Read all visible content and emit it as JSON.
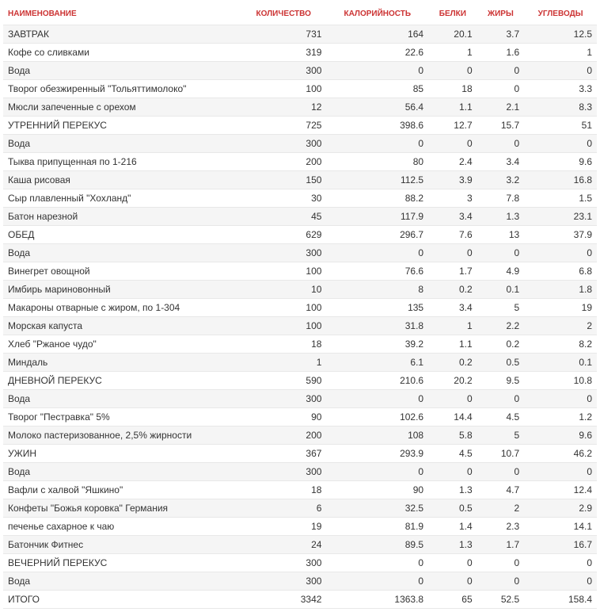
{
  "table": {
    "columns": [
      {
        "key": "name",
        "label": "НАИМЕНОВАНИЕ",
        "class": "name"
      },
      {
        "key": "qty",
        "label": "КОЛИЧЕСТВО",
        "class": "num"
      },
      {
        "key": "kcal",
        "label": "КАЛОРИЙНОСТЬ",
        "class": "num"
      },
      {
        "key": "prot",
        "label": "БЕЛКИ",
        "class": "num"
      },
      {
        "key": "fat",
        "label": "ЖИРЫ",
        "class": "num"
      },
      {
        "key": "carb",
        "label": "УГЛЕВОДЫ",
        "class": "num"
      }
    ],
    "rows": [
      {
        "name": "ЗАВТРАК",
        "qty": "731",
        "kcal": "164",
        "prot": "20.1",
        "fat": "3.7",
        "carb": "12.5"
      },
      {
        "name": "Кофе со сливками",
        "qty": "319",
        "kcal": "22.6",
        "prot": "1",
        "fat": "1.6",
        "carb": "1"
      },
      {
        "name": "Вода",
        "qty": "300",
        "kcal": "0",
        "prot": "0",
        "fat": "0",
        "carb": "0"
      },
      {
        "name": "Творог обезжиренный \"Тольяттимолоко\"",
        "qty": "100",
        "kcal": "85",
        "prot": "18",
        "fat": "0",
        "carb": "3.3"
      },
      {
        "name": "Мюсли запеченные с орехом",
        "qty": "12",
        "kcal": "56.4",
        "prot": "1.1",
        "fat": "2.1",
        "carb": "8.3"
      },
      {
        "name": "УТРЕННИЙ ПЕРЕКУС",
        "qty": "725",
        "kcal": "398.6",
        "prot": "12.7",
        "fat": "15.7",
        "carb": "51"
      },
      {
        "name": "Вода",
        "qty": "300",
        "kcal": "0",
        "prot": "0",
        "fat": "0",
        "carb": "0"
      },
      {
        "name": "Тыква припущенная по 1-216",
        "qty": "200",
        "kcal": "80",
        "prot": "2.4",
        "fat": "3.4",
        "carb": "9.6"
      },
      {
        "name": "Каша рисовая",
        "qty": "150",
        "kcal": "112.5",
        "prot": "3.9",
        "fat": "3.2",
        "carb": "16.8"
      },
      {
        "name": "Сыр плавленный \"Хохланд\"",
        "qty": "30",
        "kcal": "88.2",
        "prot": "3",
        "fat": "7.8",
        "carb": "1.5"
      },
      {
        "name": "Батон нарезной",
        "qty": "45",
        "kcal": "117.9",
        "prot": "3.4",
        "fat": "1.3",
        "carb": "23.1"
      },
      {
        "name": "ОБЕД",
        "qty": "629",
        "kcal": "296.7",
        "prot": "7.6",
        "fat": "13",
        "carb": "37.9"
      },
      {
        "name": "Вода",
        "qty": "300",
        "kcal": "0",
        "prot": "0",
        "fat": "0",
        "carb": "0"
      },
      {
        "name": "Винегрет овощной",
        "qty": "100",
        "kcal": "76.6",
        "prot": "1.7",
        "fat": "4.9",
        "carb": "6.8"
      },
      {
        "name": "Имбирь мариновонный",
        "qty": "10",
        "kcal": "8",
        "prot": "0.2",
        "fat": "0.1",
        "carb": "1.8"
      },
      {
        "name": "Макароны отварные с жиром, по 1-304",
        "qty": "100",
        "kcal": "135",
        "prot": "3.4",
        "fat": "5",
        "carb": "19"
      },
      {
        "name": "Морская капуста",
        "qty": "100",
        "kcal": "31.8",
        "prot": "1",
        "fat": "2.2",
        "carb": "2"
      },
      {
        "name": "Хлеб \"Ржаное чудо\"",
        "qty": "18",
        "kcal": "39.2",
        "prot": "1.1",
        "fat": "0.2",
        "carb": "8.2"
      },
      {
        "name": "Миндаль",
        "qty": "1",
        "kcal": "6.1",
        "prot": "0.2",
        "fat": "0.5",
        "carb": "0.1"
      },
      {
        "name": "ДНЕВНОЙ ПЕРЕКУС",
        "qty": "590",
        "kcal": "210.6",
        "prot": "20.2",
        "fat": "9.5",
        "carb": "10.8"
      },
      {
        "name": "Вода",
        "qty": "300",
        "kcal": "0",
        "prot": "0",
        "fat": "0",
        "carb": "0"
      },
      {
        "name": "Творог \"Пестравка\" 5%",
        "qty": "90",
        "kcal": "102.6",
        "prot": "14.4",
        "fat": "4.5",
        "carb": "1.2"
      },
      {
        "name": "Молоко пастеризованное, 2,5% жирности",
        "qty": "200",
        "kcal": "108",
        "prot": "5.8",
        "fat": "5",
        "carb": "9.6"
      },
      {
        "name": "УЖИН",
        "qty": "367",
        "kcal": "293.9",
        "prot": "4.5",
        "fat": "10.7",
        "carb": "46.2"
      },
      {
        "name": "Вода",
        "qty": "300",
        "kcal": "0",
        "prot": "0",
        "fat": "0",
        "carb": "0"
      },
      {
        "name": "Вафли с халвой \"Яшкино\"",
        "qty": "18",
        "kcal": "90",
        "prot": "1.3",
        "fat": "4.7",
        "carb": "12.4"
      },
      {
        "name": "Конфеты \"Божья коровка\" Германия",
        "qty": "6",
        "kcal": "32.5",
        "prot": "0.5",
        "fat": "2",
        "carb": "2.9"
      },
      {
        "name": "печенье сахарное к чаю",
        "qty": "19",
        "kcal": "81.9",
        "prot": "1.4",
        "fat": "2.3",
        "carb": "14.1"
      },
      {
        "name": "Батончик Фитнес",
        "qty": "24",
        "kcal": "89.5",
        "prot": "1.3",
        "fat": "1.7",
        "carb": "16.7"
      },
      {
        "name": "ВЕЧЕРНИЙ ПЕРЕКУС",
        "qty": "300",
        "kcal": "0",
        "prot": "0",
        "fat": "0",
        "carb": "0"
      },
      {
        "name": "Вода",
        "qty": "300",
        "kcal": "0",
        "prot": "0",
        "fat": "0",
        "carb": "0"
      },
      {
        "name": "ИТОГО",
        "qty": "3342",
        "kcal": "1363.8",
        "prot": "65",
        "fat": "52.5",
        "carb": "158.4"
      }
    ],
    "header_color": "#cc3333",
    "row_even_bg": "#f5f5f5",
    "row_odd_bg": "#ffffff",
    "border_color": "#e8e8e8",
    "text_color": "#333333",
    "font_size_body": 12,
    "font_size_header": 10
  }
}
